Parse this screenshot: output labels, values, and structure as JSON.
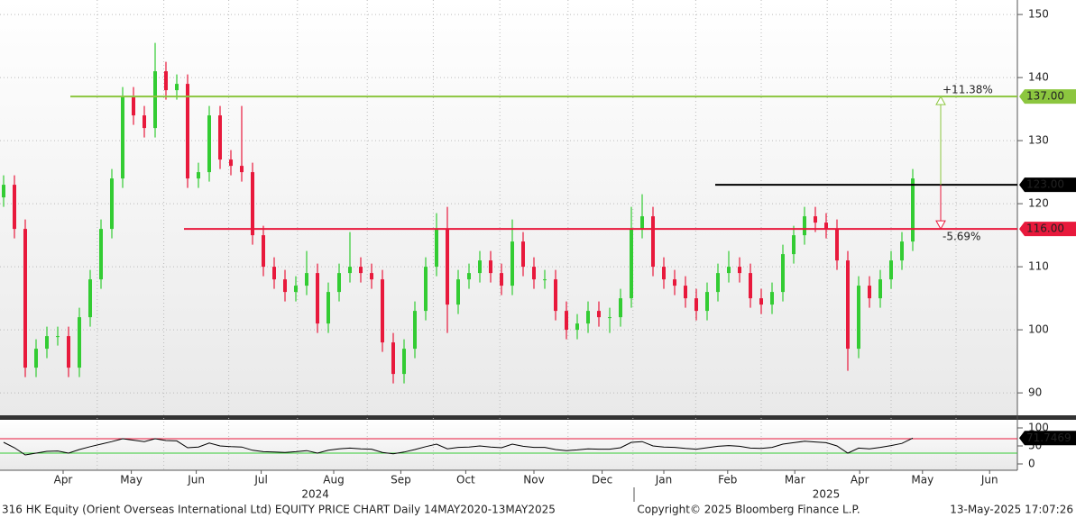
{
  "chart_data": {
    "type": "candlestick",
    "categories": [
      null,
      null,
      null,
      null,
      null,
      null,
      null,
      null,
      null,
      null,
      null,
      null,
      null,
      null,
      null,
      null,
      null,
      null,
      null,
      null,
      null,
      null,
      null,
      null,
      null,
      null,
      null,
      null,
      null,
      null,
      null,
      null,
      null,
      null,
      null,
      null,
      null,
      null,
      null,
      null,
      null,
      null,
      null,
      null,
      null,
      null,
      null,
      null,
      null,
      null,
      null,
      null,
      null,
      null,
      null,
      null,
      null,
      null,
      null,
      null,
      null,
      null,
      null,
      null,
      null,
      null,
      null,
      null,
      null,
      null,
      null,
      null,
      null,
      null,
      null,
      null,
      null,
      null,
      null,
      null,
      null,
      null,
      null,
      null,
      null
    ],
    "open": [
      121,
      123,
      116,
      94,
      97,
      99,
      99,
      94,
      102,
      108,
      116,
      124,
      137,
      134,
      132,
      141,
      138,
      139,
      124,
      125,
      134,
      127,
      126,
      125,
      115,
      110,
      108,
      106,
      107,
      109,
      101,
      106,
      109,
      110,
      109,
      108,
      98,
      93,
      97,
      103,
      110,
      116,
      104,
      108,
      109,
      111,
      109,
      107,
      114,
      110,
      108,
      108,
      103,
      100,
      101,
      103,
      102,
      102,
      105,
      116,
      118,
      110,
      108,
      107,
      105,
      103,
      106,
      109,
      110,
      109,
      105,
      104,
      106,
      112,
      115,
      118,
      117,
      116,
      111,
      97,
      107,
      105,
      108,
      111,
      114
    ],
    "high": [
      124.5,
      124.5,
      117.5,
      98.5,
      100.5,
      100.5,
      100.5,
      103.5,
      109.5,
      117.5,
      125.5,
      138.5,
      138.5,
      135.5,
      145.5,
      142.5,
      140.5,
      140.5,
      126.5,
      135.5,
      135.5,
      128.5,
      135.5,
      126.5,
      116.5,
      111.5,
      109.5,
      108.5,
      112.5,
      110.5,
      107.5,
      110.5,
      115.5,
      111.5,
      110.5,
      109.5,
      99.5,
      98.5,
      104.5,
      111.5,
      118.5,
      119.5,
      109.5,
      110.5,
      112.5,
      112.5,
      110.5,
      117.5,
      115.5,
      111.5,
      109.5,
      109.5,
      104.5,
      102.5,
      104.5,
      104.5,
      103.5,
      106.5,
      119.5,
      121.5,
      119.5,
      111.5,
      109.5,
      108.5,
      106.5,
      107.5,
      110.5,
      112.5,
      111.5,
      110.5,
      106.5,
      107.5,
      113.5,
      116.5,
      119.5,
      119.5,
      118.5,
      117.5,
      112.5,
      108.5,
      108.5,
      109.5,
      112.5,
      115.5,
      125.5
    ],
    "low": [
      119.5,
      114.5,
      92.5,
      92.5,
      95.5,
      97.5,
      92.5,
      92.5,
      100.5,
      106.5,
      114.5,
      122.5,
      132.5,
      130.5,
      130.5,
      136.5,
      136.5,
      122.5,
      122.5,
      123.5,
      125.5,
      124.5,
      123.5,
      113.5,
      108.5,
      106.5,
      104.5,
      104.5,
      105.5,
      99.5,
      99.5,
      104.5,
      107.5,
      107.5,
      106.5,
      96.5,
      91.5,
      91.5,
      95.5,
      101.5,
      108.5,
      99.5,
      102.5,
      106.5,
      107.5,
      107.5,
      105.5,
      105.5,
      108.5,
      106.5,
      106.5,
      101.5,
      98.5,
      98.5,
      99.5,
      100.5,
      99.5,
      100.5,
      103.5,
      114.5,
      108.5,
      106.5,
      105.5,
      103.5,
      101.5,
      101.5,
      104.5,
      107.5,
      107.5,
      103.5,
      102.5,
      102.5,
      104.5,
      110.5,
      113.5,
      115.5,
      114.5,
      109.5,
      93.5,
      95.5,
      103.5,
      103.5,
      106.5,
      109.5,
      112.5
    ],
    "close": [
      123,
      116,
      94,
      97,
      99,
      99,
      94,
      102,
      108,
      116,
      124,
      137,
      134,
      132,
      141,
      138,
      139,
      124,
      125,
      134,
      127,
      126,
      125,
      115,
      110,
      108,
      106,
      107,
      109,
      101,
      106,
      109,
      110,
      109,
      108,
      98,
      93,
      97,
      103,
      110,
      116,
      104,
      108,
      109,
      111,
      109,
      107,
      114,
      110,
      108,
      108,
      103,
      100,
      101,
      103,
      102,
      102,
      105,
      116,
      118,
      110,
      108,
      107,
      105,
      103,
      106,
      109,
      110,
      109,
      105,
      104,
      106,
      112,
      115,
      118,
      117,
      116,
      111,
      97,
      107,
      105,
      108,
      111,
      114,
      124
    ],
    "up_color": "#33cc33",
    "down_color": "#e8193c",
    "ylim": [
      152.3,
      86.3
    ],
    "yticks": [
      90,
      100,
      110,
      120,
      130,
      140,
      150
    ],
    "xticks": [
      {
        "value": 5.5,
        "label": "Apr"
      },
      {
        "value": 11.8,
        "label": "May"
      },
      {
        "value": 17.8,
        "label": "Jun"
      },
      {
        "value": 23.8,
        "label": "Jul"
      },
      {
        "value": 30.5,
        "label": "Aug"
      },
      {
        "value": 36.7,
        "label": "Sep"
      },
      {
        "value": 42.7,
        "label": "Oct"
      },
      {
        "value": 49,
        "label": "Nov"
      },
      {
        "value": 55.3,
        "label": "Dec"
      },
      {
        "value": 61,
        "label": "Jan"
      },
      {
        "value": 66.9,
        "label": "Feb"
      },
      {
        "value": 73.1,
        "label": "Mar"
      },
      {
        "value": 79.1,
        "label": "Apr"
      },
      {
        "value": 84.9,
        "label": "May"
      },
      {
        "value": 91.1,
        "label": "Jun"
      }
    ],
    "x_group_labels": [
      {
        "value": 28.8,
        "label": "2024"
      },
      {
        "value": 76,
        "label": "2025"
      }
    ],
    "levels": [
      {
        "value": 137,
        "label": "137.00",
        "color": "#8cc63f",
        "change": "+11.38%"
      },
      {
        "value": 123,
        "label": "123.00",
        "color": "#000000"
      },
      {
        "value": 116,
        "label": "116.00",
        "color": "#e8193c",
        "change": "-5.69%"
      }
    ],
    "rsi": {
      "values": [
        60,
        45,
        25,
        30,
        35,
        36,
        30,
        40,
        48,
        55,
        62,
        70,
        66,
        62,
        70,
        65,
        64,
        45,
        47,
        58,
        50,
        48,
        47,
        38,
        34,
        33,
        32,
        34,
        37,
        30,
        38,
        42,
        44,
        42,
        41,
        32,
        28,
        33,
        40,
        48,
        55,
        42,
        46,
        47,
        50,
        47,
        45,
        55,
        49,
        46,
        46,
        40,
        37,
        39,
        42,
        41,
        41,
        45,
        60,
        62,
        50,
        47,
        46,
        43,
        41,
        45,
        49,
        51,
        49,
        44,
        43,
        46,
        55,
        59,
        63,
        61,
        59,
        50,
        30,
        44,
        42,
        46,
        51,
        57,
        71.7469
      ],
      "color": "#000000",
      "ylim": [
        122.5,
        -17.5
      ],
      "yticks": [
        0,
        50,
        100
      ],
      "overbought": 70,
      "oversold": 30
    },
    "footer_left": "316 HK Equity (Orient Overseas International Ltd) EQUITY PRICE CHART  Daily 14MAY2020-13MAY2025",
    "footer_center": "Copyright© 2025 Bloomberg Finance L.P.",
    "footer_right": "13-May-2025 17:07:26"
  }
}
